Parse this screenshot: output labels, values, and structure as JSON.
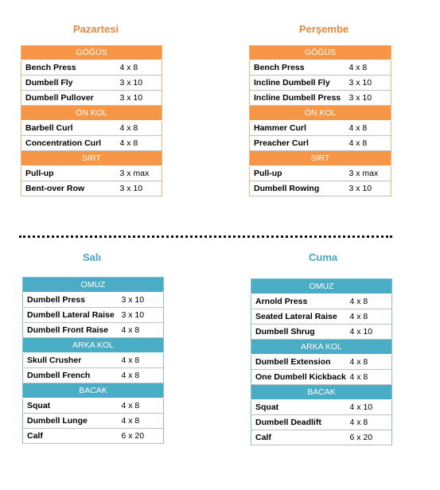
{
  "days": [
    {
      "id": "pazartesi",
      "title": "Pazartesi",
      "groups": [
        {
          "name": "GÖĞÜS",
          "rows": [
            [
              "Bench Press",
              "4 x 8"
            ],
            [
              "Dumbell Fly",
              "3 x 10"
            ],
            [
              "Dumbell Pullover",
              "3 x 10"
            ]
          ]
        },
        {
          "name": "ÖN KOL",
          "rows": [
            [
              "Barbell Curl",
              "4 x 8"
            ],
            [
              "Concentration Curl",
              "4 x 8"
            ]
          ]
        },
        {
          "name": "SIRT",
          "rows": [
            [
              "Pull-up",
              "3 x max"
            ],
            [
              "Bent-over Row",
              "3 x 10"
            ]
          ]
        }
      ]
    },
    {
      "id": "persembe",
      "title": "Perşembe",
      "groups": [
        {
          "name": "GÖĞÜS",
          "rows": [
            [
              "Bench Press",
              "4 x 8"
            ],
            [
              "Incline Dumbell Fly",
              "3 x 10"
            ],
            [
              "Incline Dumbell Press",
              "3 x 10"
            ]
          ]
        },
        {
          "name": "ÖN KOL",
          "rows": [
            [
              "Hammer Curl",
              "4 x 8"
            ],
            [
              "Preacher Curl",
              "4 x 8"
            ]
          ]
        },
        {
          "name": "SIRT",
          "rows": [
            [
              "Pull-up",
              "3 x max"
            ],
            [
              "Dumbell Rowing",
              "3 x 10"
            ]
          ]
        }
      ]
    },
    {
      "id": "sali",
      "title": "Salı",
      "groups": [
        {
          "name": "OMUZ",
          "rows": [
            [
              "Dumbell Press",
              "3 x 10"
            ],
            [
              "Dumbell Lateral Raise",
              "3 x 10"
            ],
            [
              "Dumbell Front Raise",
              "4 x 8"
            ]
          ]
        },
        {
          "name": "ARKA KOL",
          "rows": [
            [
              "Skull Crusher",
              "4 x 8"
            ],
            [
              "Dumbell French",
              "4 x 8"
            ]
          ]
        },
        {
          "name": "BACAK",
          "rows": [
            [
              "Squat",
              "4 x 8"
            ],
            [
              "Dumbell Lunge",
              "4 x 8"
            ],
            [
              "Calf",
              "6 x 20"
            ]
          ]
        }
      ]
    },
    {
      "id": "cuma",
      "title": "Cuma",
      "groups": [
        {
          "name": "OMUZ",
          "rows": [
            [
              "Arnold Press",
              "4 x 8"
            ],
            [
              "Seated Lateral Raise",
              "4 x 8"
            ],
            [
              "Dumbell Shrug",
              "4 x 10"
            ]
          ]
        },
        {
          "name": "ARKA KOL",
          "rows": [
            [
              "Dumbell Extension",
              "4 x 8"
            ],
            [
              "One Dumbell Kickback",
              "4 x 8"
            ]
          ]
        },
        {
          "name": "BACAK",
          "rows": [
            [
              "Squat",
              "4 x 10"
            ],
            [
              "Dumbell Deadlift",
              "4 x 8"
            ],
            [
              "Calf",
              "6 x 20"
            ]
          ]
        }
      ]
    }
  ]
}
